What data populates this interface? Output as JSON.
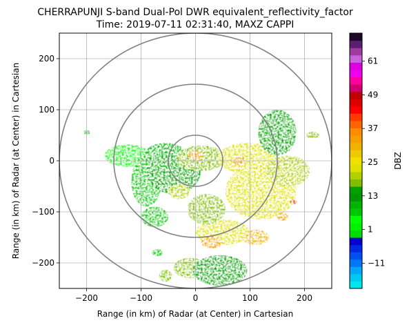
{
  "chart_data": {
    "type": "heatmap",
    "title": "CHERRAPUNJI S-band Dual-Pol DWR equivalent_reflectivity_factor",
    "subtitle": "Time: 2019-07-11 02:31:40, MAXZ CAPPI",
    "xlabel": "Range (in km) of Radar (at Center) in Cartesian",
    "ylabel": "Range (in km) of Radar (at Center) in Cartesian",
    "xlim": [
      -250,
      250
    ],
    "ylim": [
      -250,
      250
    ],
    "x_ticks": [
      -200,
      -100,
      0,
      100,
      200
    ],
    "y_ticks": [
      -200,
      -100,
      0,
      100,
      200
    ],
    "x_tick_labels": [
      "−200",
      "−100",
      "0",
      "100",
      "200"
    ],
    "y_tick_labels": [
      "−200",
      "−100",
      "0",
      "100",
      "200"
    ],
    "grid": true,
    "range_rings_km": [
      50,
      150,
      250
    ],
    "colorbar": {
      "label": "DBZ",
      "min": -20,
      "max": 71,
      "tick_values": [
        -11,
        1,
        13,
        25,
        37,
        49,
        61
      ],
      "tick_labels": [
        "−11",
        "1",
        "13",
        "25",
        "37",
        "49",
        "61"
      ],
      "colors": [
        "#00e5ee",
        "#00c8f0",
        "#00a8f5",
        "#0078f5",
        "#0050f0",
        "#0028e0",
        "#0000d0",
        "#00dc00",
        "#00f000",
        "#00ff00",
        "#00c800",
        "#00b400",
        "#009600",
        "#00a000",
        "#7fbf00",
        "#b0d000",
        "#e0e000",
        "#f0e000",
        "#f0c800",
        "#f0b400",
        "#f5a000",
        "#ff8c00",
        "#ff6400",
        "#ff3c00",
        "#ff0000",
        "#dc0000",
        "#c00000",
        "#d0006e",
        "#ff00a0",
        "#f000f0",
        "#dc00dc",
        "#c864dc",
        "#a03ca0",
        "#5a2070",
        "#1e0a28"
      ]
    },
    "echoes_dbz": [
      {
        "x": -125,
        "y": 10,
        "rx": 42,
        "ry": 22,
        "dbz": 5
      },
      {
        "x": -90,
        "y": -40,
        "rx": 28,
        "ry": 50,
        "dbz": 8
      },
      {
        "x": -75,
        "y": -110,
        "rx": 25,
        "ry": 20,
        "dbz": 8
      },
      {
        "x": -40,
        "y": -20,
        "rx": 50,
        "ry": 45,
        "dbz": 14
      },
      {
        "x": -55,
        "y": 10,
        "rx": 40,
        "ry": 25,
        "dbz": 10
      },
      {
        "x": 10,
        "y": 5,
        "rx": 45,
        "ry": 25,
        "dbz": 18
      },
      {
        "x": 0,
        "y": 10,
        "rx": 14,
        "ry": 10,
        "dbz": 34
      },
      {
        "x": 95,
        "y": 5,
        "rx": 55,
        "ry": 30,
        "dbz": 24
      },
      {
        "x": 120,
        "y": -60,
        "rx": 65,
        "ry": 55,
        "dbz": 22
      },
      {
        "x": 170,
        "y": -20,
        "rx": 40,
        "ry": 30,
        "dbz": 20
      },
      {
        "x": 150,
        "y": 55,
        "rx": 35,
        "ry": 45,
        "dbz": 14
      },
      {
        "x": 50,
        "y": -140,
        "rx": 50,
        "ry": 25,
        "dbz": 23
      },
      {
        "x": 20,
        "y": -95,
        "rx": 35,
        "ry": 30,
        "dbz": 18
      },
      {
        "x": -10,
        "y": -210,
        "rx": 30,
        "ry": 20,
        "dbz": 18
      },
      {
        "x": 45,
        "y": -215,
        "rx": 50,
        "ry": 30,
        "dbz": 15
      },
      {
        "x": -55,
        "y": -225,
        "rx": 12,
        "ry": 12,
        "dbz": 18
      },
      {
        "x": -70,
        "y": -180,
        "rx": 10,
        "ry": 7,
        "dbz": 8
      },
      {
        "x": -200,
        "y": 55,
        "rx": 6,
        "ry": 5,
        "dbz": 14
      },
      {
        "x": 215,
        "y": 50,
        "rx": 12,
        "ry": 7,
        "dbz": 18
      },
      {
        "x": 110,
        "y": -150,
        "rx": 25,
        "ry": 15,
        "dbz": 30
      },
      {
        "x": 80,
        "y": 0,
        "rx": 12,
        "ry": 10,
        "dbz": 32
      },
      {
        "x": 180,
        "y": -80,
        "rx": 6,
        "ry": 5,
        "dbz": 40
      },
      {
        "x": 160,
        "y": -110,
        "rx": 10,
        "ry": 8,
        "dbz": 33
      },
      {
        "x": 30,
        "y": -160,
        "rx": 20,
        "ry": 12,
        "dbz": 32
      },
      {
        "x": -30,
        "y": -60,
        "rx": 20,
        "ry": 15,
        "dbz": 20
      }
    ]
  }
}
